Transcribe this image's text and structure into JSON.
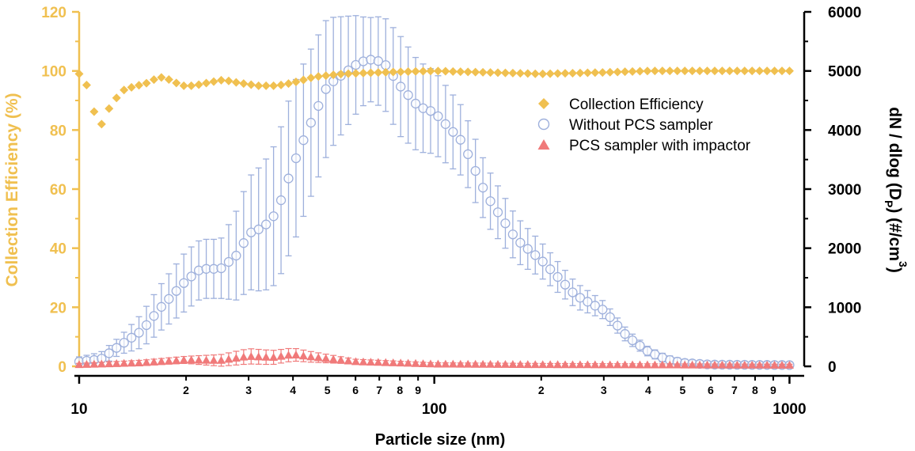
{
  "chart_data": {
    "type": "scatter",
    "xscale": "log",
    "xlim": [
      10,
      1100
    ],
    "xlabel": "Particle size (nm)",
    "x_major_ticks": [
      {
        "value": 10,
        "label": "10"
      },
      {
        "value": 100,
        "label": "100"
      },
      {
        "value": 1000,
        "label": "1000"
      }
    ],
    "x_minor_ticks": [
      {
        "value": 20,
        "label": "2"
      },
      {
        "value": 30,
        "label": "3"
      },
      {
        "value": 40,
        "label": "4"
      },
      {
        "value": 50,
        "label": "5"
      },
      {
        "value": 60,
        "label": "6"
      },
      {
        "value": 70,
        "label": "7"
      },
      {
        "value": 80,
        "label": "8"
      },
      {
        "value": 90,
        "label": "9"
      },
      {
        "value": 200,
        "label": "2"
      },
      {
        "value": 300,
        "label": "3"
      },
      {
        "value": 400,
        "label": "4"
      },
      {
        "value": 500,
        "label": "5"
      },
      {
        "value": 600,
        "label": "6"
      },
      {
        "value": 700,
        "label": "7"
      },
      {
        "value": 800,
        "label": "8"
      },
      {
        "value": 900,
        "label": "9"
      }
    ],
    "y_left": {
      "label": "Collection Efficiency (%)",
      "lim": [
        0,
        120
      ],
      "ticks": [
        "0",
        "20",
        "40",
        "60",
        "80",
        "100",
        "120"
      ],
      "color": "#f0c050"
    },
    "y_right": {
      "label_main": "dN / dlog (D",
      "label_sub": "P",
      "label_mid": ") (#/cm",
      "label_sup": "3",
      "label_end": ")",
      "lim": [
        0,
        6000
      ],
      "ticks": [
        "0",
        "1000",
        "2000",
        "3000",
        "4000",
        "5000",
        "6000"
      ],
      "color": "#000000"
    },
    "legend": {
      "position": "center-right",
      "entries": [
        "Collection Efficiency",
        "Without PCS sampler",
        "PCS sampler with impactor"
      ]
    },
    "series": [
      {
        "name": "Collection Efficiency",
        "axis": "left",
        "marker": "diamond",
        "color": "#f0c050",
        "anchors": [
          [
            10,
            99
          ],
          [
            10.4,
            97
          ],
          [
            10.9,
            88
          ],
          [
            11.3,
            82
          ],
          [
            11.7,
            82
          ],
          [
            12.1,
            87
          ],
          [
            12.6,
            90
          ],
          [
            13.1,
            93
          ],
          [
            13.6,
            94
          ],
          [
            14.6,
            95
          ],
          [
            15.6,
            96
          ],
          [
            16.8,
            98
          ],
          [
            18,
            97
          ],
          [
            19.5,
            95
          ],
          [
            21,
            95
          ],
          [
            23,
            96
          ],
          [
            25.5,
            97
          ],
          [
            28,
            96
          ],
          [
            32,
            95
          ],
          [
            36,
            95
          ],
          [
            40,
            96
          ],
          [
            46,
            98
          ],
          [
            55,
            99
          ],
          [
            70,
            99.5
          ],
          [
            100,
            100
          ],
          [
            200,
            99
          ],
          [
            300,
            99.5
          ],
          [
            400,
            100
          ],
          [
            1100,
            100
          ]
        ],
        "count": 96
      },
      {
        "name": "Without PCS sampler",
        "axis": "right",
        "marker": "circle",
        "color": "#9eb0dc",
        "anchors": [
          [
            10,
            80
          ],
          [
            11.5,
            120
          ],
          [
            13,
            350
          ],
          [
            15,
            600
          ],
          [
            17,
            1000
          ],
          [
            20,
            1450
          ],
          [
            22,
            1650
          ],
          [
            25,
            1650
          ],
          [
            28,
            1900
          ],
          [
            30,
            2250
          ],
          [
            33,
            2350
          ],
          [
            36,
            2600
          ],
          [
            40,
            3400
          ],
          [
            44,
            4000
          ],
          [
            50,
            4750
          ],
          [
            60,
            5100
          ],
          [
            65,
            5200
          ],
          [
            72,
            5150
          ],
          [
            80,
            4750
          ],
          [
            90,
            4400
          ],
          [
            100,
            4300
          ],
          [
            120,
            3800
          ],
          [
            140,
            2900
          ],
          [
            170,
            2150
          ],
          [
            200,
            1800
          ],
          [
            250,
            1200
          ],
          [
            300,
            950
          ],
          [
            350,
            500
          ],
          [
            400,
            250
          ],
          [
            450,
            120
          ],
          [
            500,
            60
          ],
          [
            600,
            30
          ],
          [
            1100,
            20
          ]
        ],
        "error_anchors": [
          [
            10,
            80
          ],
          [
            13,
            150
          ],
          [
            16,
            350
          ],
          [
            20,
            500
          ],
          [
            25,
            500
          ],
          [
            30,
            950
          ],
          [
            40,
            1350
          ],
          [
            50,
            1150
          ],
          [
            65,
            700
          ],
          [
            80,
            850
          ],
          [
            100,
            700
          ],
          [
            150,
            450
          ],
          [
            200,
            300
          ],
          [
            300,
            150
          ],
          [
            400,
            80
          ],
          [
            600,
            50
          ],
          [
            1100,
            50
          ]
        ],
        "count": 96
      },
      {
        "name": "PCS sampler with impactor",
        "axis": "right",
        "marker": "triangle",
        "color": "#f07a7a",
        "anchors": [
          [
            10,
            30
          ],
          [
            15,
            60
          ],
          [
            20,
            110
          ],
          [
            25,
            100
          ],
          [
            30,
            170
          ],
          [
            35,
            150
          ],
          [
            40,
            200
          ],
          [
            45,
            160
          ],
          [
            60,
            80
          ],
          [
            100,
            40
          ],
          [
            200,
            30
          ],
          [
            1100,
            20
          ]
        ],
        "error_anchors": [
          [
            10,
            20
          ],
          [
            20,
            60
          ],
          [
            30,
            130
          ],
          [
            40,
            110
          ],
          [
            60,
            40
          ],
          [
            100,
            20
          ],
          [
            1100,
            15
          ]
        ],
        "count": 96
      }
    ]
  }
}
